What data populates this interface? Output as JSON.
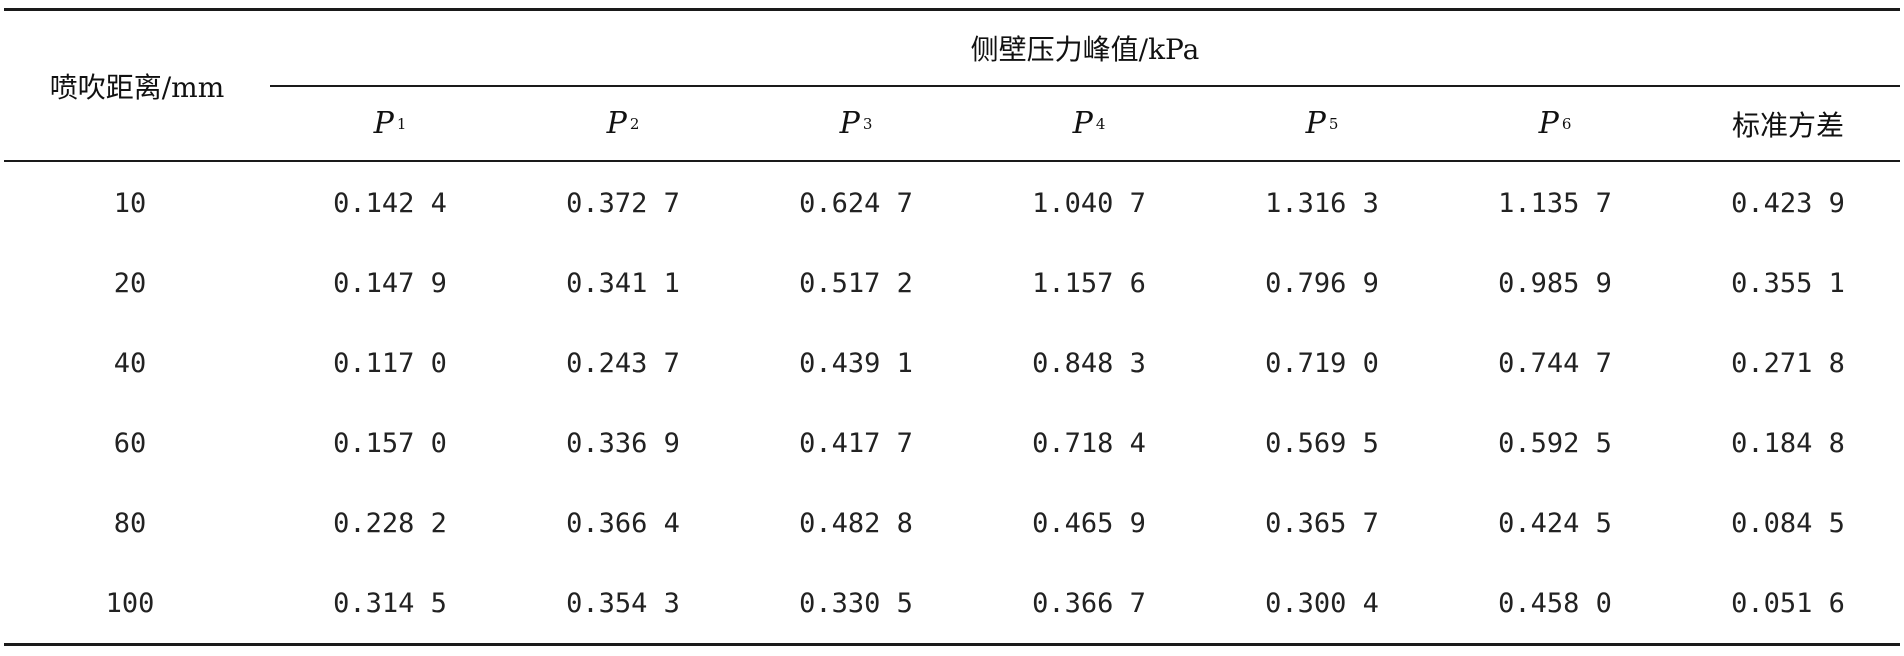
{
  "table": {
    "stub_header": "喷吹距离/mm",
    "group_header": "侧壁压力峰值/kPa",
    "columns": [
      {
        "symbol": "P",
        "sub": "1"
      },
      {
        "symbol": "P",
        "sub": "2"
      },
      {
        "symbol": "P",
        "sub": "3"
      },
      {
        "symbol": "P",
        "sub": "4"
      },
      {
        "symbol": "P",
        "sub": "5"
      },
      {
        "symbol": "P",
        "sub": "6"
      }
    ],
    "std_header": "标准方差",
    "rows": [
      {
        "distance": "10",
        "values": [
          "0.142 4",
          "0.372 7",
          "0.624 7",
          "1.040 7",
          "1.316 3",
          "1.135 7",
          "0.423 9"
        ]
      },
      {
        "distance": "20",
        "values": [
          "0.147 9",
          "0.341 1",
          "0.517 2",
          "1.157 6",
          "0.796 9",
          "0.985 9",
          "0.355 1"
        ]
      },
      {
        "distance": "40",
        "values": [
          "0.117 0",
          "0.243 7",
          "0.439 1",
          "0.848 3",
          "0.719 0",
          "0.744 7",
          "0.271 8"
        ]
      },
      {
        "distance": "60",
        "values": [
          "0.157 0",
          "0.336 9",
          "0.417 7",
          "0.718 4",
          "0.569 5",
          "0.592 5",
          "0.184 8"
        ]
      },
      {
        "distance": "80",
        "values": [
          "0.228 2",
          "0.366 4",
          "0.482 8",
          "0.465 9",
          "0.365 7",
          "0.424 5",
          "0.084 5"
        ]
      },
      {
        "distance": "100",
        "values": [
          "0.314 5",
          "0.354 3",
          "0.330 5",
          "0.366 7",
          "0.300 4",
          "0.458 0",
          "0.051 6"
        ]
      }
    ]
  }
}
